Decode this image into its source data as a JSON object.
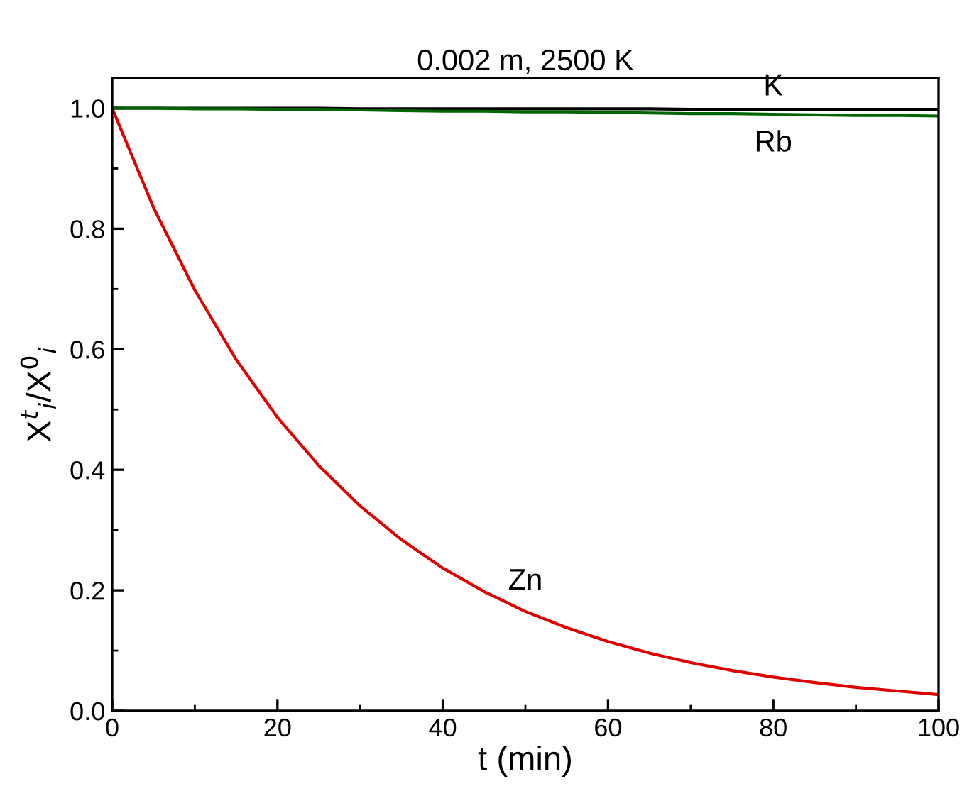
{
  "chart_data": {
    "type": "line",
    "title": "0.002 m, 2500 K",
    "xlabel": "t (min)",
    "ylabel": "X$^{t}$$_{i}$/X$^{0}$$_{i}$",
    "xlim": [
      0,
      100
    ],
    "ylim": [
      0,
      1.05
    ],
    "xticks": [
      0,
      {
        "value": 10,
        "label": null
      },
      20,
      {
        "value": 30,
        "label": null
      },
      40,
      {
        "value": 50,
        "label": null
      },
      60,
      {
        "value": 70,
        "label": null
      },
      80,
      {
        "value": 90,
        "label": null
      },
      100
    ],
    "yticks": [
      {
        "value": 0,
        "label": "0.0"
      },
      {
        "value": 0.1,
        "label": null
      },
      0.2,
      {
        "value": 0.3,
        "label": null
      },
      0.4,
      {
        "value": 0.5,
        "label": null
      },
      0.6,
      {
        "value": 0.7,
        "label": null
      },
      0.8,
      {
        "value": 0.9,
        "label": null
      },
      {
        "value": 1,
        "label": "1.0"
      }
    ],
    "grid": false,
    "legend": false,
    "marker": "none",
    "line_style": "solid",
    "x": [
      0,
      5,
      10,
      15,
      20,
      25,
      30,
      35,
      40,
      45,
      50,
      55,
      60,
      65,
      70,
      75,
      80,
      85,
      90,
      95,
      100
    ],
    "series": [
      {
        "name": "K",
        "color": "#000000",
        "values": [
          1.0,
          1.0,
          1.0,
          1.0,
          1.0,
          1.0,
          0.999,
          0.999,
          0.999,
          0.999,
          0.999,
          0.999,
          0.999,
          0.999,
          0.998,
          0.998,
          0.998,
          0.998,
          0.998,
          0.998,
          0.998
        ]
      },
      {
        "name": "Rb",
        "color": "#006400",
        "values": [
          1.0,
          1.0,
          0.999,
          0.999,
          0.998,
          0.998,
          0.997,
          0.996,
          0.995,
          0.995,
          0.994,
          0.994,
          0.993,
          0.992,
          0.991,
          0.991,
          0.99,
          0.989,
          0.988,
          0.988,
          0.987
        ]
      },
      {
        "name": "Zn",
        "color": "#e00000",
        "values": [
          1.0,
          0.835,
          0.698,
          0.583,
          0.487,
          0.407,
          0.34,
          0.284,
          0.237,
          0.198,
          0.165,
          0.138,
          0.115,
          0.096,
          0.08,
          0.067,
          0.056,
          0.047,
          0.039,
          0.033,
          0.027
        ]
      }
    ]
  }
}
